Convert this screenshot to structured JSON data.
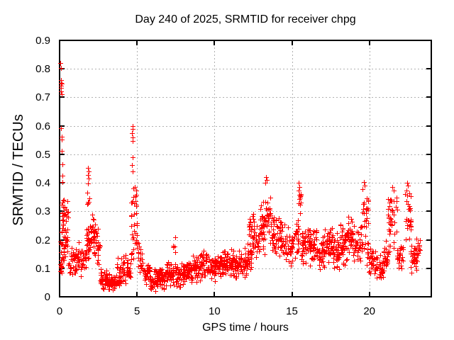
{
  "chart_data": {
    "type": "scatter",
    "title": "Day 240 of 2025, SRMTID for receiver chpg",
    "xlabel": "GPS time / hours",
    "ylabel": "SRMTID / TECUs",
    "xlim": [
      0,
      24
    ],
    "ylim": [
      0,
      0.9
    ],
    "xticks": [
      0,
      5,
      10,
      15,
      20
    ],
    "xtick_labels": [
      "0",
      "5",
      "10",
      "15",
      "20"
    ],
    "yticks": [
      0,
      0.1,
      0.2,
      0.3,
      0.4,
      0.5,
      0.6,
      0.7,
      0.8,
      0.9
    ],
    "ytick_labels": [
      "0",
      "0.1",
      "0.2",
      "0.3",
      "0.4",
      "0.5",
      "0.6",
      "0.7",
      "0.8",
      "0.9"
    ],
    "grid": true,
    "grid_style": "dotted",
    "legend": "none",
    "marker": "plus",
    "marker_color": "#ff0000",
    "grid_color": "#b0b0b0",
    "frame_color": "#000000",
    "background_color": "#ffffff",
    "series": [
      {
        "name": "SRMTID",
        "color": "#ff0000",
        "density_bands": [
          [
            0.0,
            0.15,
            0.06,
            0.14,
            12
          ],
          [
            0.05,
            0.3,
            0.09,
            0.24,
            16
          ],
          [
            0.15,
            0.6,
            0.23,
            0.35,
            30
          ],
          [
            0.25,
            0.55,
            0.12,
            0.26,
            18
          ],
          [
            0.5,
            0.95,
            0.07,
            0.18,
            22
          ],
          [
            0.95,
            1.4,
            0.07,
            0.2,
            30
          ],
          [
            1.4,
            1.7,
            0.08,
            0.18,
            18
          ],
          [
            1.7,
            2.0,
            0.1,
            0.26,
            26
          ],
          [
            1.78,
            1.92,
            0.27,
            0.38,
            6
          ],
          [
            2.0,
            2.3,
            0.13,
            0.31,
            30
          ],
          [
            2.3,
            2.6,
            0.08,
            0.24,
            22
          ],
          [
            2.6,
            3.05,
            0.02,
            0.1,
            36
          ],
          [
            3.05,
            3.7,
            0.02,
            0.085,
            55
          ],
          [
            3.7,
            4.3,
            0.035,
            0.15,
            44
          ],
          [
            4.3,
            4.6,
            0.055,
            0.13,
            22
          ],
          [
            4.6,
            5.0,
            0.1,
            0.3,
            20
          ],
          [
            4.6,
            5.0,
            0.24,
            0.42,
            18
          ],
          [
            5.0,
            5.4,
            0.05,
            0.22,
            24
          ],
          [
            5.4,
            5.85,
            0.03,
            0.13,
            28
          ],
          [
            5.85,
            6.35,
            0.015,
            0.1,
            46
          ],
          [
            6.35,
            6.9,
            0.025,
            0.105,
            46
          ],
          [
            6.9,
            7.5,
            0.035,
            0.13,
            46
          ],
          [
            7.3,
            7.5,
            0.14,
            0.185,
            4
          ],
          [
            7.5,
            8.1,
            0.03,
            0.12,
            46
          ],
          [
            8.1,
            8.6,
            0.04,
            0.135,
            40
          ],
          [
            8.6,
            9.1,
            0.05,
            0.15,
            40
          ],
          [
            9.1,
            9.6,
            0.06,
            0.165,
            40
          ],
          [
            9.6,
            10.1,
            0.05,
            0.15,
            40
          ],
          [
            10.1,
            10.6,
            0.06,
            0.16,
            40
          ],
          [
            10.6,
            11.1,
            0.065,
            0.17,
            40
          ],
          [
            11.1,
            11.6,
            0.06,
            0.165,
            40
          ],
          [
            11.6,
            12.1,
            0.065,
            0.175,
            40
          ],
          [
            12.1,
            12.45,
            0.08,
            0.2,
            24
          ],
          [
            12.2,
            12.6,
            0.2,
            0.31,
            18
          ],
          [
            12.45,
            12.95,
            0.12,
            0.27,
            30
          ],
          [
            12.95,
            13.25,
            0.14,
            0.35,
            28
          ],
          [
            13.25,
            13.6,
            0.17,
            0.4,
            28
          ],
          [
            13.6,
            14.0,
            0.13,
            0.3,
            28
          ],
          [
            14.0,
            14.55,
            0.12,
            0.285,
            36
          ],
          [
            14.55,
            15.1,
            0.09,
            0.25,
            36
          ],
          [
            15.1,
            15.45,
            0.12,
            0.28,
            22
          ],
          [
            15.35,
            15.6,
            0.27,
            0.395,
            8
          ],
          [
            15.6,
            16.1,
            0.1,
            0.25,
            40
          ],
          [
            16.1,
            16.6,
            0.1,
            0.27,
            40
          ],
          [
            16.6,
            17.1,
            0.08,
            0.23,
            40
          ],
          [
            17.1,
            17.6,
            0.1,
            0.26,
            40
          ],
          [
            17.6,
            18.1,
            0.08,
            0.225,
            40
          ],
          [
            18.1,
            18.6,
            0.1,
            0.27,
            40
          ],
          [
            18.6,
            19.1,
            0.12,
            0.3,
            40
          ],
          [
            19.1,
            19.55,
            0.11,
            0.27,
            26
          ],
          [
            19.55,
            19.95,
            0.23,
            0.4,
            20
          ],
          [
            19.5,
            19.95,
            0.1,
            0.23,
            14
          ],
          [
            19.95,
            20.4,
            0.07,
            0.18,
            28
          ],
          [
            20.4,
            20.9,
            0.05,
            0.16,
            30
          ],
          [
            20.9,
            21.3,
            0.08,
            0.2,
            26
          ],
          [
            21.2,
            21.8,
            0.14,
            0.38,
            36
          ],
          [
            21.75,
            22.2,
            0.08,
            0.2,
            24
          ],
          [
            22.3,
            22.7,
            0.16,
            0.4,
            30
          ],
          [
            22.65,
            23.1,
            0.07,
            0.2,
            28
          ],
          [
            23.0,
            23.3,
            0.1,
            0.21,
            14
          ]
        ],
        "outlier_points": [
          [
            0.05,
            0.82
          ],
          [
            0.07,
            0.803
          ],
          [
            0.08,
            0.762
          ],
          [
            0.1,
            0.752
          ],
          [
            0.12,
            0.748
          ],
          [
            0.09,
            0.74
          ],
          [
            0.11,
            0.733
          ],
          [
            0.1,
            0.722
          ],
          [
            0.12,
            0.712
          ],
          [
            0.1,
            0.592
          ],
          [
            0.13,
            0.562
          ],
          [
            0.12,
            0.551
          ],
          [
            0.15,
            0.512
          ],
          [
            0.18,
            0.465
          ],
          [
            0.17,
            0.425
          ],
          [
            0.2,
            0.402
          ],
          [
            1.84,
            0.452
          ],
          [
            1.87,
            0.44
          ],
          [
            1.85,
            0.428
          ],
          [
            1.88,
            0.414
          ],
          [
            1.83,
            0.398
          ],
          [
            4.7,
            0.6
          ],
          [
            4.72,
            0.588
          ],
          [
            4.69,
            0.574
          ],
          [
            4.71,
            0.56
          ],
          [
            4.7,
            0.547
          ],
          [
            4.74,
            0.49
          ],
          [
            4.68,
            0.462
          ],
          [
            4.73,
            0.44
          ],
          [
            7.45,
            0.21
          ],
          [
            13.33,
            0.42
          ],
          [
            13.39,
            0.41
          ],
          [
            13.3,
            0.401
          ],
          [
            15.45,
            0.4
          ],
          [
            15.48,
            0.386
          ],
          [
            15.43,
            0.373
          ],
          [
            15.5,
            0.357
          ],
          [
            15.46,
            0.342
          ],
          [
            19.63,
            0.402
          ],
          [
            19.7,
            0.39
          ],
          [
            19.58,
            0.378
          ],
          [
            21.5,
            0.385
          ],
          [
            21.55,
            0.372
          ],
          [
            22.42,
            0.401
          ],
          [
            22.47,
            0.39
          ],
          [
            22.38,
            0.373
          ]
        ]
      }
    ]
  }
}
